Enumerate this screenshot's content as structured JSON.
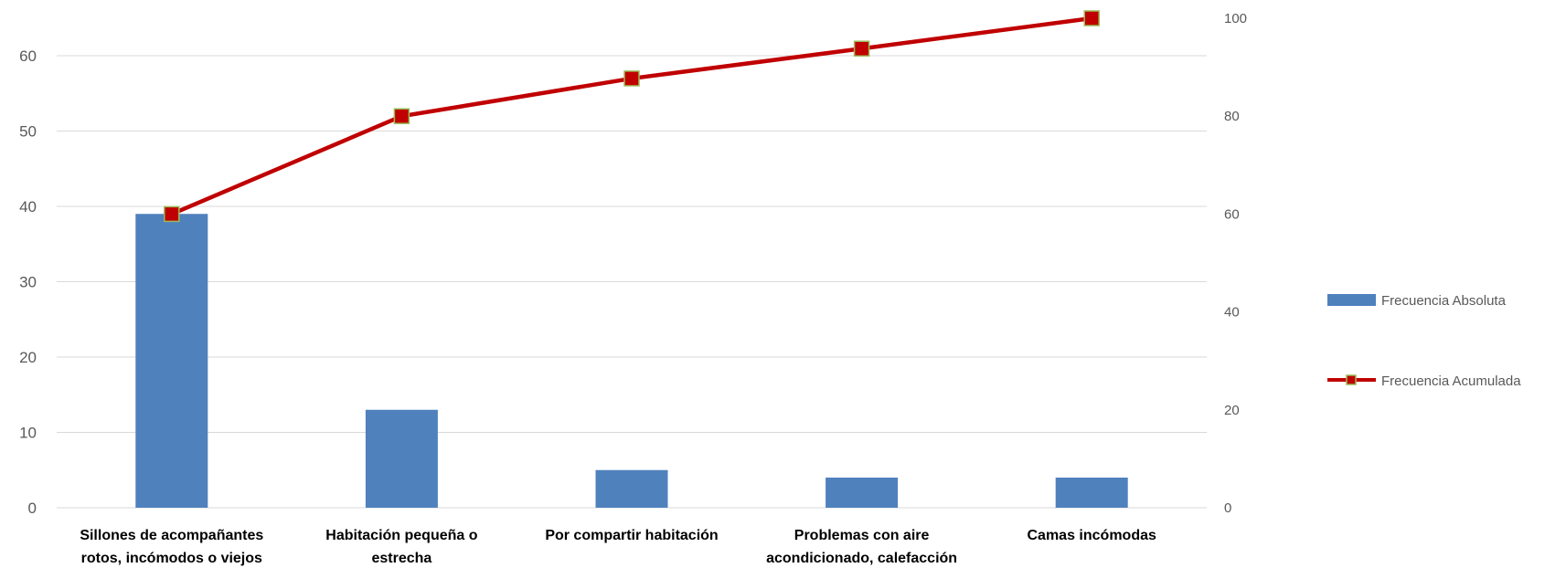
{
  "chart_data": {
    "type": "bar",
    "categories": [
      [
        "Sillones de acompañantes",
        "rotos, incómodos o viejos"
      ],
      [
        "Habitación pequeña o",
        "estrecha"
      ],
      [
        "Por compartir habitación"
      ],
      [
        "Problemas con aire",
        "acondicionado, calefacción"
      ],
      [
        "Camas incómodas"
      ]
    ],
    "series": [
      {
        "name": "Frecuencia Absoluta",
        "type": "bar",
        "axis": "left",
        "values": [
          39,
          13,
          5,
          4,
          4
        ]
      },
      {
        "name": "Frecuencia Acumulada",
        "type": "line",
        "axis": "right",
        "values": [
          60,
          80,
          87.7,
          93.8,
          100
        ]
      }
    ],
    "y_left": {
      "ylim": [
        0,
        65
      ],
      "ticks": [
        0,
        10,
        20,
        30,
        40,
        50,
        60
      ]
    },
    "y_right": {
      "ylim": [
        0,
        100
      ],
      "ticks": [
        0,
        20,
        40,
        60,
        80,
        100
      ]
    },
    "grid": true,
    "legend_position": "right",
    "colors": {
      "bar": "#4f81bd",
      "line": "#c00000",
      "marker_fill": "#c00000",
      "marker_border": "#9bbb59",
      "grid": "#d9d9d9"
    }
  }
}
